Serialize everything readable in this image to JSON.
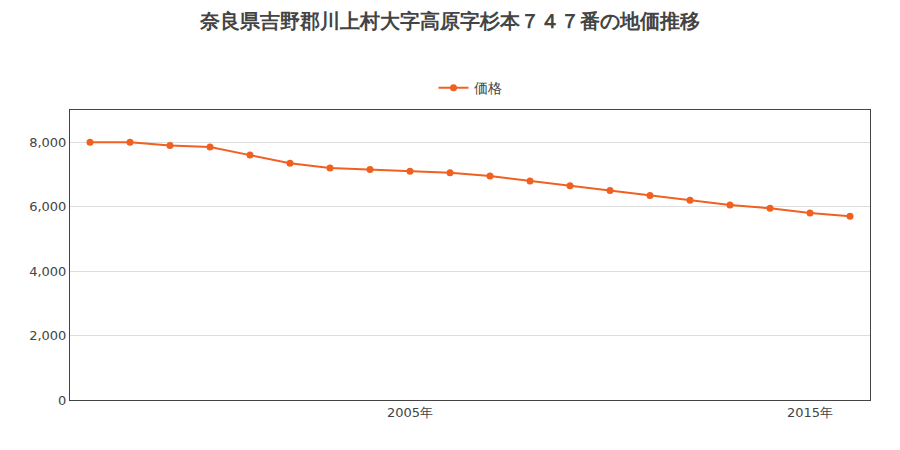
{
  "chart_data": {
    "type": "line",
    "title": "奈良県吉野郡川上村大字高原字杉本７４７番の地価推移",
    "x": [
      1997,
      1998,
      1999,
      2000,
      2001,
      2002,
      2003,
      2004,
      2005,
      2006,
      2007,
      2008,
      2009,
      2010,
      2011,
      2012,
      2013,
      2014,
      2015,
      2016
    ],
    "series": [
      {
        "name": "価格",
        "color": "#f06020",
        "marker": "circle",
        "line_style": "solid",
        "values": [
          8000,
          8000,
          7900,
          7850,
          7600,
          7350,
          7200,
          7150,
          7100,
          7050,
          6950,
          6800,
          6650,
          6500,
          6350,
          6200,
          6050,
          5950,
          5800,
          5700
        ]
      }
    ],
    "xlim": [
      1996.5,
      2016.5
    ],
    "xticks": [
      {
        "value": 2005,
        "label": "2005年"
      },
      {
        "value": 2015,
        "label": "2015年"
      }
    ],
    "ylim": [
      0,
      9000
    ],
    "yticks": [
      0,
      {
        "value": 2000,
        "label": "2,000"
      },
      {
        "value": 4000,
        "label": "4,000"
      },
      {
        "value": 6000,
        "label": "6,000"
      },
      {
        "value": 8000,
        "label": "8,000"
      }
    ],
    "grid": true,
    "legend": "top"
  }
}
